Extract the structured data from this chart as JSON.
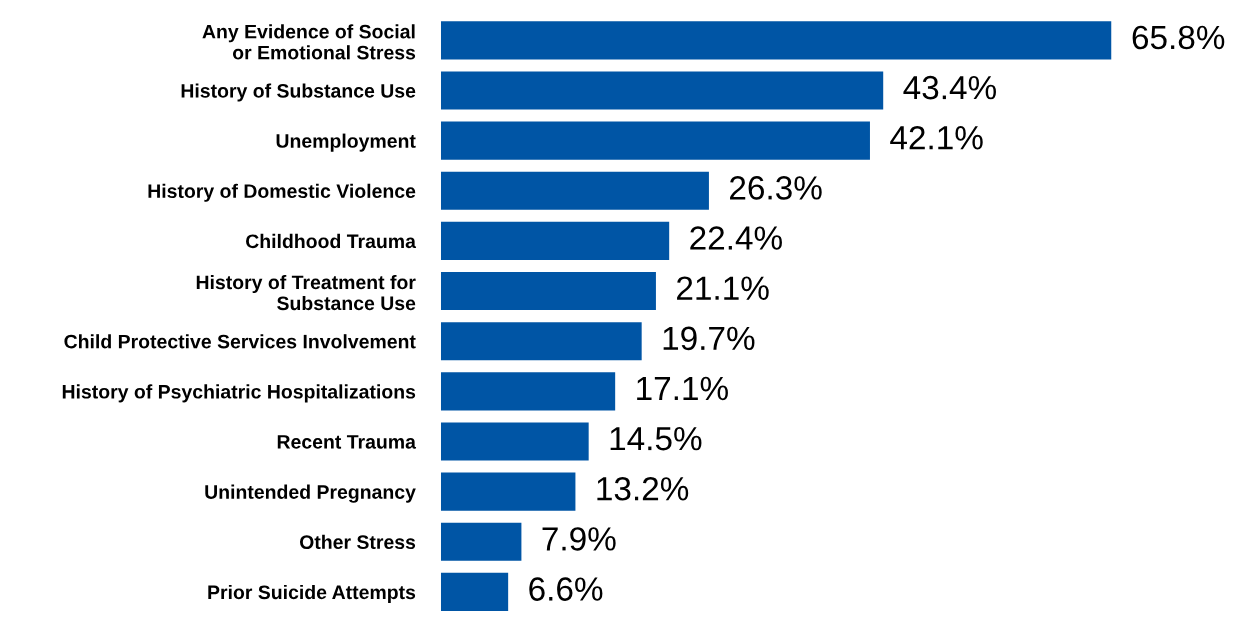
{
  "chart_data": {
    "type": "bar",
    "orientation": "horizontal",
    "color": "#0055a5",
    "categories": [
      "Any Evidence of Social\nor Emotional Stress",
      "History of Substance Use",
      "Unemployment",
      "History of Domestic Violence",
      "Childhood Trauma",
      "History of Treatment for\nSubstance Use",
      "Child Protective Services Involvement",
      "History of Psychiatric Hospitalizations",
      "Recent Trauma",
      "Unintended Pregnancy",
      "Other Stress",
      "Prior Suicide Attempts"
    ],
    "values": [
      65.8,
      43.4,
      42.1,
      26.3,
      22.4,
      21.1,
      19.7,
      17.1,
      14.5,
      13.2,
      7.9,
      6.6
    ],
    "value_labels": [
      "65.8%",
      "43.4%",
      "42.1%",
      "26.3%",
      "22.4%",
      "21.1%",
      "19.7%",
      "17.1%",
      "14.5%",
      "13.2%",
      "7.9%",
      "6.6%"
    ],
    "grid": false,
    "legend": false
  }
}
